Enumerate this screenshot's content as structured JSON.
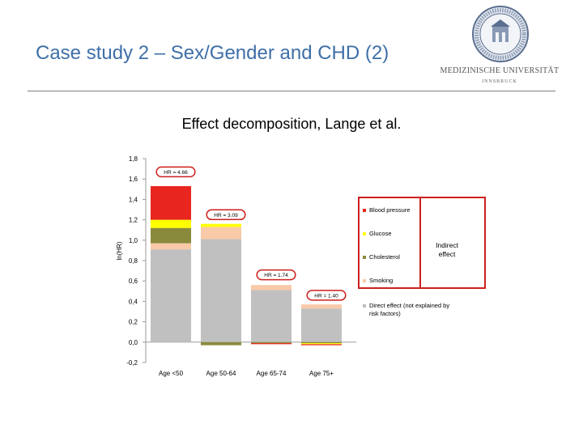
{
  "slide": {
    "title": "Case study 2 – Sex/Gender and CHD (2)"
  },
  "logo": {
    "text": "MEDIZINISCHE UNIVERSITÄT",
    "subtext": "INNSBRUCK"
  },
  "colors": {
    "title": "#3f6fa8",
    "direct": "#c0c0c0",
    "smoking": "#f9c9a8",
    "cholesterol": "#8a8a3c",
    "glucose": "#ffff00",
    "blood_pressure": "#e8261f",
    "highlight_box": "#cc1f1f"
  },
  "chart_data": {
    "type": "bar",
    "stacked": true,
    "title": "Effect decomposition, Lange et al.",
    "ylabel": "ln(HR)",
    "ylim": [
      -0.2,
      1.8
    ],
    "yticks": [
      "-0,2",
      "0,0",
      "0,2",
      "0,4",
      "0,6",
      "0,8",
      "1,0",
      "1,2",
      "1,4",
      "1,6",
      "1,8"
    ],
    "grid": false,
    "legend_position": "right",
    "categories": [
      "Age <50",
      "Age 50-64",
      "Age 65-74",
      "Age 75+"
    ],
    "series": [
      {
        "name": "Direct effect (not explained by risk factors)",
        "color_key": "direct",
        "values": [
          0.91,
          1.01,
          0.51,
          0.33
        ]
      },
      {
        "name": "Smoking",
        "color_key": "smoking",
        "values": [
          0.06,
          0.12,
          0.05,
          0.04
        ]
      },
      {
        "name": "Cholesterol",
        "color_key": "cholesterol",
        "values": [
          0.15,
          -0.03,
          -0.01,
          -0.01
        ]
      },
      {
        "name": "Glucose",
        "color_key": "glucose",
        "values": [
          0.08,
          0.03,
          0.0,
          -0.01
        ]
      },
      {
        "name": "Blood pressure",
        "color_key": "blood_pressure",
        "values": [
          0.33,
          0.0,
          -0.01,
          -0.01
        ]
      }
    ],
    "legend_order": [
      "Blood pressure",
      "Glucose",
      "Cholesterol",
      "Smoking",
      "Direct effect (not explained by risk factors)"
    ],
    "annotations": [
      {
        "text": "HR = 4.66",
        "category": "Age <50",
        "y": 1.67
      },
      {
        "text": "HR = 3.09",
        "category": "Age 50-64",
        "y": 1.25
      },
      {
        "text": "HR = 1.74",
        "category": "Age 65-74",
        "y": 0.66
      },
      {
        "text": "HR = 1.40",
        "category": "Age 75+",
        "y": 0.46
      }
    ],
    "bracket_label": "Indirect effect",
    "bracket_series": [
      "Blood pressure",
      "Glucose",
      "Cholesterol",
      "Smoking"
    ]
  }
}
